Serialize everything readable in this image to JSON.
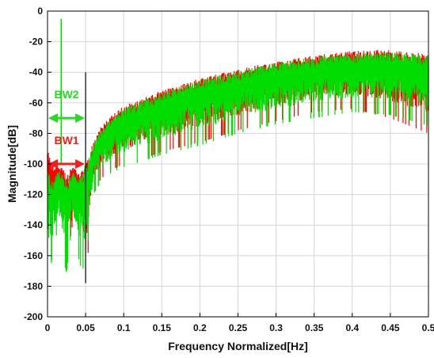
{
  "chart_data": {
    "type": "line",
    "title": "",
    "xlabel": "Frequency Normalized[Hz]",
    "ylabel": "Magnitude[dB]",
    "xlim": [
      0,
      0.5
    ],
    "ylim": [
      -200,
      0
    ],
    "xticks": [
      "0",
      "0.05",
      "0.1",
      "0.15",
      "0.2",
      "0.25",
      "0.3",
      "0.35",
      "0.4",
      "0.45",
      "0.5"
    ],
    "yticks": [
      "0",
      "-20",
      "-40",
      "-60",
      "-80",
      "-100",
      "-120",
      "-140",
      "-160",
      "-180",
      "-200"
    ],
    "grid": true,
    "legend": "none",
    "series": [
      {
        "color": "#ff0000",
        "envelope_x": [
          0,
          0.005,
          0.01,
          0.015,
          0.02,
          0.025,
          0.03,
          0.035,
          0.04,
          0.045,
          0.05,
          0.06,
          0.07,
          0.08,
          0.1,
          0.12,
          0.15,
          0.2,
          0.25,
          0.3,
          0.35,
          0.4,
          0.45,
          0.5
        ],
        "upper": [
          -90,
          -98,
          -102,
          -100,
          -103,
          -108,
          -102,
          -100,
          -105,
          -103,
          -100,
          -86,
          -76,
          -70,
          -62,
          -58,
          -52,
          -44,
          -38,
          -33,
          -29,
          -26,
          -25,
          -28
        ],
        "lower": [
          -120,
          -135,
          -128,
          -120,
          -140,
          -150,
          -180,
          -125,
          -140,
          -148,
          -178,
          -118,
          -110,
          -105,
          -100,
          -98,
          -92,
          -86,
          -78,
          -72,
          -66,
          -64,
          -70,
          -80
        ]
      },
      {
        "color": "#00dd00",
        "envelope_x": [
          0,
          0.005,
          0.01,
          0.015,
          0.02,
          0.025,
          0.03,
          0.035,
          0.04,
          0.045,
          0.05,
          0.06,
          0.07,
          0.08,
          0.1,
          0.12,
          0.15,
          0.2,
          0.25,
          0.3,
          0.35,
          0.4,
          0.45,
          0.5
        ],
        "upper": [
          -100,
          -112,
          -106,
          -104,
          -105,
          -112,
          -108,
          -104,
          -110,
          -104,
          -100,
          -88,
          -78,
          -72,
          -64,
          -59,
          -53,
          -45,
          -39,
          -34,
          -30,
          -28,
          -27,
          -29
        ],
        "lower": [
          -140,
          -165,
          -150,
          -140,
          -160,
          -172,
          -150,
          -145,
          -160,
          -170,
          -165,
          -120,
          -112,
          -107,
          -102,
          -99,
          -94,
          -88,
          -80,
          -74,
          -70,
          -66,
          -68,
          -75
        ]
      }
    ],
    "spike": {
      "x": 0.018,
      "top": -5,
      "bottom": -100,
      "color": "#00dd00"
    },
    "markers": [
      {
        "x": 0.05,
        "top": -40,
        "bottom": -178,
        "color": "#000000"
      }
    ],
    "annotations": [
      {
        "label": "BW2",
        "color": "#22dd22",
        "y": -70,
        "x0": 0,
        "x1": 0.05,
        "label_y": -57
      },
      {
        "label": "BW1",
        "color": "#ff1a1a",
        "y": -100,
        "x0": 0,
        "x1": 0.05,
        "label_y": -87
      }
    ]
  }
}
